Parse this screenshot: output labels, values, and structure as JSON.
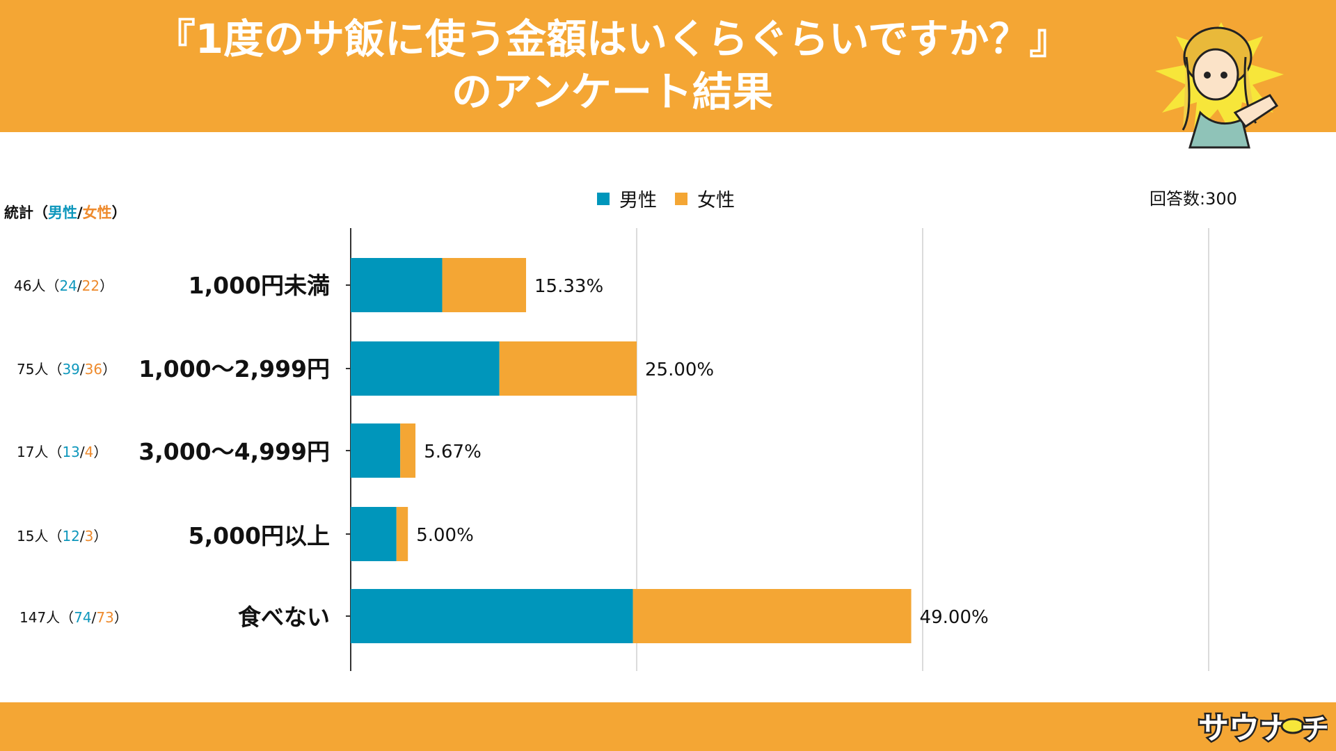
{
  "header": {
    "title_line1": "『1度のサ飯に使う金額はいくらぐらいですか？』",
    "title_line2": "のアンケート結果"
  },
  "legend": {
    "male": "男性",
    "female": "女性"
  },
  "respondents_label": "回答数:300",
  "stats_heading": {
    "prefix": "統計（",
    "male": "男性",
    "slash": "/",
    "female": "女性",
    "suffix": "）"
  },
  "counts": [
    {
      "total": "46人（",
      "male": "24",
      "slash": "/",
      "female": "22",
      "close": "）"
    },
    {
      "total": "75人（",
      "male": "39",
      "slash": "/",
      "female": "36",
      "close": "）"
    },
    {
      "total": "17人（",
      "male": "13",
      "slash": "/",
      "female": "4",
      "close": "）"
    },
    {
      "total": "15人（",
      "male": "12",
      "slash": "/",
      "female": "3",
      "close": "）"
    },
    {
      "total": "147人（",
      "male": "74",
      "slash": "/",
      "female": "73",
      "close": "）"
    }
  ],
  "colors": {
    "male": "#0096BB",
    "female": "#F4A634",
    "header": "#F4A634"
  },
  "chart_data": {
    "type": "bar",
    "orientation": "horizontal",
    "stacked": true,
    "categories": [
      "1,000円未満",
      "1,000〜2,999円",
      "3,000〜4,999円",
      "5,000円以上",
      "食べない"
    ],
    "series": [
      {
        "name": "男性",
        "values": [
          8.0,
          13.0,
          4.33,
          4.0,
          24.67
        ]
      },
      {
        "name": "女性",
        "values": [
          7.33,
          12.0,
          1.33,
          1.0,
          24.33
        ]
      }
    ],
    "totals": [
      15.33,
      25.0,
      5.67,
      5.0,
      49.0
    ],
    "total_labels": [
      "15.33%",
      "25.00%",
      "5.67%",
      "5.00%",
      "49.00%"
    ],
    "xlim": [
      0,
      75
    ],
    "grid": true,
    "legend_position": "top"
  }
}
